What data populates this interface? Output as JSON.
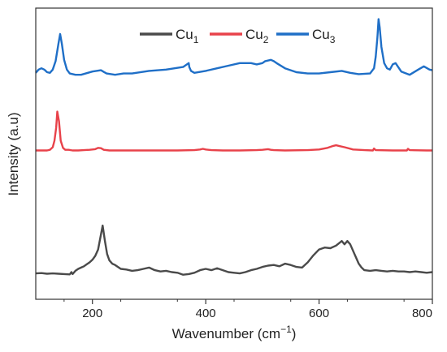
{
  "chart_data": {
    "type": "line",
    "xlabel_main": "Wavenumber (cm",
    "xlabel_sup": "−1",
    "xlabel_close": ")",
    "ylabel": "Intensity (a.u)",
    "xlim": [
      100,
      800
    ],
    "xticks": [
      200,
      400,
      600,
      800
    ],
    "yticks_shown": false,
    "grid": false,
    "legend_placement": "top-center",
    "series": [
      {
        "name": "Cu1",
        "name_base": "Cu",
        "name_sub": "1",
        "color": "#4a4a4a",
        "x": [
          100,
          110,
          120,
          130,
          140,
          150,
          160,
          163,
          165,
          170,
          175,
          180,
          185,
          190,
          195,
          200,
          205,
          210,
          215,
          218,
          222,
          226,
          230,
          235,
          240,
          245,
          250,
          260,
          270,
          280,
          290,
          300,
          310,
          320,
          330,
          340,
          350,
          360,
          370,
          380,
          390,
          400,
          410,
          420,
          430,
          440,
          450,
          460,
          470,
          480,
          490,
          500,
          510,
          520,
          530,
          540,
          550,
          560,
          570,
          580,
          590,
          600,
          610,
          620,
          630,
          640,
          645,
          650,
          655,
          660,
          665,
          670,
          675,
          680,
          690,
          700,
          710,
          720,
          730,
          740,
          750,
          760,
          770,
          780,
          790,
          800
        ],
        "y": [
          0.05,
          0.055,
          0.045,
          0.05,
          0.045,
          0.04,
          0.035,
          0.07,
          0.04,
          0.09,
          0.12,
          0.14,
          0.16,
          0.19,
          0.22,
          0.26,
          0.32,
          0.42,
          0.65,
          0.79,
          0.55,
          0.35,
          0.25,
          0.2,
          0.18,
          0.15,
          0.12,
          0.11,
          0.09,
          0.1,
          0.12,
          0.14,
          0.1,
          0.08,
          0.09,
          0.07,
          0.06,
          0.03,
          0.04,
          0.06,
          0.1,
          0.12,
          0.1,
          0.13,
          0.1,
          0.07,
          0.06,
          0.05,
          0.07,
          0.1,
          0.12,
          0.15,
          0.17,
          0.18,
          0.16,
          0.2,
          0.18,
          0.15,
          0.14,
          0.22,
          0.33,
          0.42,
          0.45,
          0.44,
          0.48,
          0.55,
          0.5,
          0.55,
          0.5,
          0.4,
          0.3,
          0.2,
          0.14,
          0.1,
          0.09,
          0.1,
          0.09,
          0.08,
          0.09,
          0.08,
          0.08,
          0.07,
          0.08,
          0.07,
          0.06,
          0.07
        ]
      },
      {
        "name": "Cu2",
        "name_base": "Cu",
        "name_sub": "2",
        "color": "#e8424a",
        "x": [
          100,
          110,
          120,
          125,
          130,
          133,
          136,
          138,
          141,
          144,
          148,
          152,
          158,
          165,
          175,
          185,
          195,
          205,
          210,
          215,
          220,
          230,
          250,
          300,
          350,
          380,
          390,
          395,
          400,
          410,
          430,
          460,
          490,
          500,
          510,
          515,
          520,
          540,
          580,
          600,
          615,
          625,
          630,
          635,
          645,
          660,
          680,
          695,
          697,
          700,
          730,
          755,
          757,
          760,
          790,
          800
        ],
        "y": [
          1.95,
          1.95,
          1.95,
          1.96,
          2.0,
          2.1,
          2.3,
          2.55,
          2.4,
          2.1,
          1.99,
          1.96,
          1.96,
          1.95,
          1.95,
          1.955,
          1.96,
          1.97,
          1.99,
          1.985,
          1.96,
          1.95,
          1.95,
          1.95,
          1.95,
          1.955,
          1.965,
          1.975,
          1.965,
          1.955,
          1.95,
          1.95,
          1.955,
          1.96,
          1.97,
          1.96,
          1.955,
          1.95,
          1.955,
          1.965,
          1.99,
          2.02,
          2.03,
          2.02,
          2.0,
          1.965,
          1.955,
          1.95,
          1.98,
          1.955,
          1.95,
          1.95,
          1.975,
          1.955,
          1.95,
          1.95
        ]
      },
      {
        "name": "Cu3",
        "name_base": "Cu",
        "name_sub": "3",
        "color": "#1f6fc7",
        "x": [
          100,
          105,
          110,
          115,
          120,
          125,
          130,
          135,
          140,
          143,
          146,
          150,
          155,
          160,
          170,
          180,
          200,
          215,
          225,
          240,
          255,
          270,
          300,
          330,
          360,
          370,
          371,
          374,
          380,
          400,
          420,
          440,
          460,
          480,
          490,
          500,
          505,
          515,
          520,
          525,
          540,
          560,
          580,
          600,
          620,
          640,
          655,
          670,
          690,
          697,
          700,
          703,
          705,
          707,
          710,
          715,
          720,
          725,
          730,
          735,
          745,
          760,
          775,
          785,
          795,
          800
        ],
        "y": [
          3.15,
          3.2,
          3.22,
          3.2,
          3.16,
          3.15,
          3.2,
          3.33,
          3.6,
          3.75,
          3.6,
          3.35,
          3.2,
          3.14,
          3.12,
          3.12,
          3.17,
          3.19,
          3.14,
          3.12,
          3.14,
          3.14,
          3.18,
          3.2,
          3.24,
          3.3,
          3.24,
          3.18,
          3.15,
          3.18,
          3.22,
          3.26,
          3.3,
          3.3,
          3.28,
          3.3,
          3.33,
          3.35,
          3.33,
          3.3,
          3.22,
          3.16,
          3.14,
          3.14,
          3.16,
          3.18,
          3.15,
          3.13,
          3.14,
          3.22,
          3.4,
          3.7,
          3.98,
          3.85,
          3.55,
          3.3,
          3.22,
          3.2,
          3.28,
          3.3,
          3.17,
          3.12,
          3.2,
          3.25,
          3.2,
          3.19
        ]
      }
    ]
  }
}
